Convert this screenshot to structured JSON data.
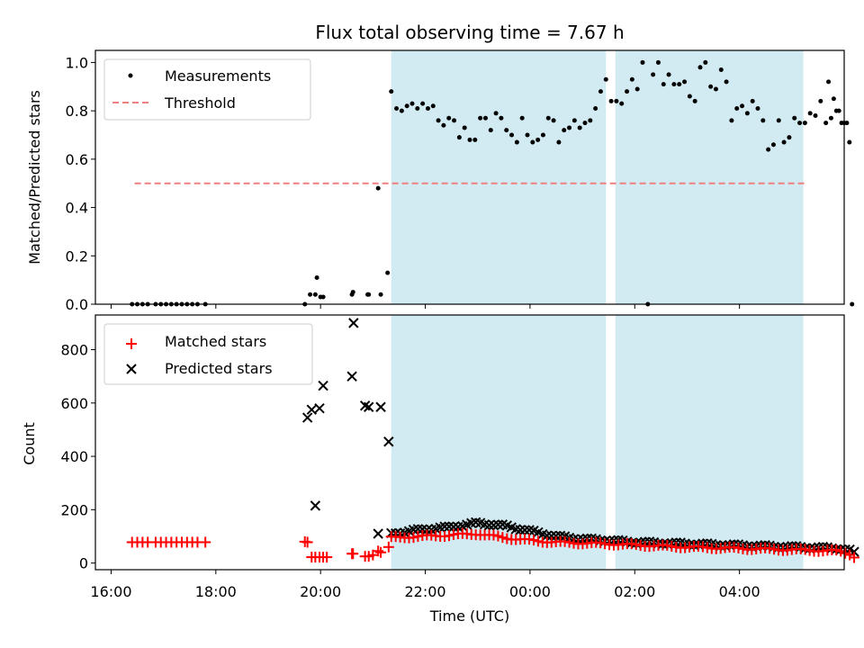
{
  "chart_data": {
    "title": "Flux total observing time = 7.67 h",
    "xlabel": "Time (UTC)",
    "x_tick_labels": [
      "16:00",
      "18:00",
      "20:00",
      "22:00",
      "00:00",
      "02:00",
      "04:00"
    ],
    "x_tick_hours": [
      16,
      18,
      20,
      22,
      24,
      26,
      28
    ],
    "xlim_hours": [
      15.7,
      30.0
    ],
    "observing_windows_hours": [
      [
        21.35,
        25.45
      ],
      [
        25.63,
        29.22
      ]
    ],
    "colors": {
      "window": "#add8e6",
      "threshold": "#f08080",
      "matched": "#ff0000",
      "measurement": "#000000",
      "predicted": "#000000"
    },
    "top": {
      "type": "scatter",
      "ylabel": "Matched/Predicted stars",
      "ylim": [
        0,
        1.05
      ],
      "y_ticks": [
        0.0,
        0.2,
        0.4,
        0.6,
        0.8,
        1.0
      ],
      "y_tick_labels": [
        "0.0",
        "0.2",
        "0.4",
        "0.6",
        "0.8",
        "1.0"
      ],
      "legend_position": "top-left",
      "legend": [
        {
          "label": "Measurements",
          "marker": "dot"
        },
        {
          "label": "Threshold",
          "marker": "dashed-line"
        }
      ],
      "threshold": {
        "value": 0.5,
        "x_range_hours": [
          16.45,
          29.3
        ]
      },
      "measurements": [
        [
          16.4,
          0
        ],
        [
          16.5,
          0
        ],
        [
          16.6,
          0
        ],
        [
          16.7,
          0
        ],
        [
          16.85,
          0
        ],
        [
          16.95,
          0
        ],
        [
          17.05,
          0
        ],
        [
          17.15,
          0
        ],
        [
          17.25,
          0
        ],
        [
          17.35,
          0
        ],
        [
          17.45,
          0
        ],
        [
          17.55,
          0
        ],
        [
          17.65,
          0
        ],
        [
          17.8,
          0
        ],
        [
          19.7,
          0
        ],
        [
          19.8,
          0.04
        ],
        [
          19.9,
          0.04
        ],
        [
          19.93,
          0.11
        ],
        [
          20.0,
          0.03
        ],
        [
          20.05,
          0.03
        ],
        [
          20.6,
          0.04
        ],
        [
          20.62,
          0.05
        ],
        [
          20.9,
          0.04
        ],
        [
          20.92,
          0.04
        ],
        [
          21.1,
          0.48
        ],
        [
          21.15,
          0.04
        ],
        [
          21.28,
          0.13
        ],
        [
          21.35,
          0.88
        ],
        [
          21.45,
          0.81
        ],
        [
          21.55,
          0.8
        ],
        [
          21.65,
          0.82
        ],
        [
          21.75,
          0.83
        ],
        [
          21.85,
          0.81
        ],
        [
          21.95,
          0.83
        ],
        [
          22.05,
          0.81
        ],
        [
          22.15,
          0.82
        ],
        [
          22.25,
          0.76
        ],
        [
          22.35,
          0.74
        ],
        [
          22.45,
          0.77
        ],
        [
          22.55,
          0.76
        ],
        [
          22.65,
          0.69
        ],
        [
          22.75,
          0.73
        ],
        [
          22.85,
          0.68
        ],
        [
          22.95,
          0.68
        ],
        [
          23.05,
          0.77
        ],
        [
          23.15,
          0.77
        ],
        [
          23.25,
          0.72
        ],
        [
          23.35,
          0.79
        ],
        [
          23.45,
          0.77
        ],
        [
          23.55,
          0.72
        ],
        [
          23.65,
          0.7
        ],
        [
          23.75,
          0.67
        ],
        [
          23.85,
          0.77
        ],
        [
          23.95,
          0.7
        ],
        [
          24.05,
          0.67
        ],
        [
          24.15,
          0.68
        ],
        [
          24.25,
          0.7
        ],
        [
          24.35,
          0.77
        ],
        [
          24.45,
          0.76
        ],
        [
          24.55,
          0.67
        ],
        [
          24.65,
          0.72
        ],
        [
          24.75,
          0.73
        ],
        [
          24.85,
          0.76
        ],
        [
          24.95,
          0.73
        ],
        [
          25.05,
          0.75
        ],
        [
          25.15,
          0.76
        ],
        [
          25.25,
          0.81
        ],
        [
          25.35,
          0.88
        ],
        [
          25.45,
          0.93
        ],
        [
          25.55,
          0.84
        ],
        [
          25.65,
          0.84
        ],
        [
          25.75,
          0.83
        ],
        [
          25.85,
          0.88
        ],
        [
          25.95,
          0.93
        ],
        [
          26.05,
          0.89
        ],
        [
          26.15,
          1.0
        ],
        [
          26.25,
          0.0
        ],
        [
          26.35,
          0.95
        ],
        [
          26.45,
          1.0
        ],
        [
          26.55,
          0.91
        ],
        [
          26.65,
          0.95
        ],
        [
          26.75,
          0.91
        ],
        [
          26.85,
          0.91
        ],
        [
          26.95,
          0.92
        ],
        [
          27.05,
          0.86
        ],
        [
          27.15,
          0.84
        ],
        [
          27.25,
          0.98
        ],
        [
          27.35,
          1.0
        ],
        [
          27.45,
          0.9
        ],
        [
          27.55,
          0.89
        ],
        [
          27.65,
          0.97
        ],
        [
          27.75,
          0.92
        ],
        [
          27.85,
          0.76
        ],
        [
          27.95,
          0.81
        ],
        [
          28.05,
          0.82
        ],
        [
          28.15,
          0.79
        ],
        [
          28.25,
          0.84
        ],
        [
          28.35,
          0.81
        ],
        [
          28.45,
          0.76
        ],
        [
          28.55,
          0.64
        ],
        [
          28.65,
          0.66
        ],
        [
          28.75,
          0.76
        ],
        [
          28.85,
          0.67
        ],
        [
          28.95,
          0.69
        ],
        [
          29.05,
          0.77
        ],
        [
          29.15,
          0.75
        ],
        [
          29.25,
          0.75
        ],
        [
          29.35,
          0.79
        ],
        [
          29.45,
          0.78
        ],
        [
          29.55,
          0.84
        ],
        [
          29.65,
          0.75
        ],
        [
          29.7,
          0.92
        ],
        [
          29.75,
          0.77
        ],
        [
          29.8,
          0.85
        ],
        [
          29.85,
          0.8
        ],
        [
          29.9,
          0.8
        ],
        [
          29.95,
          0.75
        ],
        [
          30.0,
          0.75
        ],
        [
          30.05,
          0.75
        ],
        [
          30.1,
          0.67
        ],
        [
          30.15,
          0.0
        ]
      ]
    },
    "bottom": {
      "type": "scatter",
      "ylabel": "Count",
      "ylim": [
        -25,
        930
      ],
      "y_ticks": [
        0,
        200,
        400,
        600,
        800
      ],
      "y_tick_labels": [
        "0",
        "200",
        "400",
        "600",
        "800"
      ],
      "legend_position": "top-left",
      "legend": [
        {
          "label": "Matched stars",
          "marker": "plus"
        },
        {
          "label": "Predicted stars",
          "marker": "x"
        }
      ],
      "predicted_isolated": [
        [
          19.75,
          545
        ],
        [
          19.83,
          575
        ],
        [
          19.9,
          215
        ],
        [
          19.98,
          580
        ],
        [
          20.05,
          665
        ],
        [
          20.6,
          700
        ],
        [
          20.63,
          900
        ],
        [
          20.85,
          590
        ],
        [
          20.92,
          585
        ],
        [
          21.1,
          110
        ],
        [
          21.15,
          585
        ],
        [
          21.3,
          455
        ]
      ],
      "predicted_trend": [
        [
          21.35,
          110
        ],
        [
          21.9,
          125
        ],
        [
          22.5,
          135
        ],
        [
          23.0,
          150
        ],
        [
          23.5,
          140
        ],
        [
          24.0,
          120
        ],
        [
          24.5,
          100
        ],
        [
          25.0,
          90
        ],
        [
          25.5,
          85
        ],
        [
          26.0,
          78
        ],
        [
          27.0,
          72
        ],
        [
          28.0,
          66
        ],
        [
          29.0,
          60
        ],
        [
          29.9,
          55
        ],
        [
          30.1,
          48
        ],
        [
          30.22,
          35
        ]
      ],
      "matched_isolated": [
        [
          16.4,
          78
        ],
        [
          16.5,
          78
        ],
        [
          16.6,
          78
        ],
        [
          16.7,
          78
        ],
        [
          16.85,
          78
        ],
        [
          16.95,
          78
        ],
        [
          17.05,
          78
        ],
        [
          17.15,
          78
        ],
        [
          17.25,
          78
        ],
        [
          17.35,
          78
        ],
        [
          17.45,
          78
        ],
        [
          17.55,
          78
        ],
        [
          17.65,
          78
        ],
        [
          17.8,
          78
        ],
        [
          19.7,
          80
        ],
        [
          19.75,
          78
        ],
        [
          19.83,
          22
        ],
        [
          19.9,
          22
        ],
        [
          19.98,
          22
        ],
        [
          20.05,
          22
        ],
        [
          20.12,
          22
        ],
        [
          20.6,
          35
        ],
        [
          20.62,
          35
        ],
        [
          20.85,
          25
        ],
        [
          20.92,
          25
        ],
        [
          21.0,
          30
        ],
        [
          21.1,
          45
        ],
        [
          21.15,
          40
        ],
        [
          21.3,
          60
        ]
      ],
      "matched_trend": [
        [
          21.35,
          95
        ],
        [
          21.9,
          100
        ],
        [
          22.5,
          105
        ],
        [
          23.0,
          110
        ],
        [
          23.5,
          95
        ],
        [
          24.0,
          85
        ],
        [
          24.5,
          78
        ],
        [
          25.0,
          75
        ],
        [
          25.5,
          72
        ],
        [
          26.0,
          68
        ],
        [
          27.0,
          60
        ],
        [
          28.0,
          55
        ],
        [
          29.0,
          50
        ],
        [
          29.9,
          45
        ],
        [
          30.1,
          35
        ],
        [
          30.22,
          20
        ]
      ]
    }
  }
}
